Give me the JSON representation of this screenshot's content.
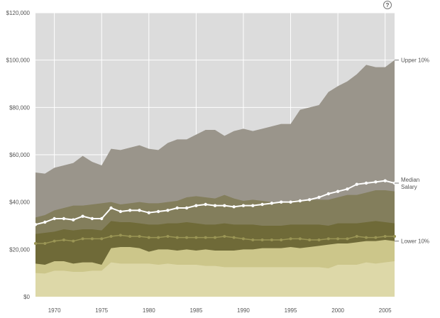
{
  "help_glyph": "?",
  "chart_data": {
    "type": "area",
    "x": [
      1968,
      1969,
      1970,
      1971,
      1972,
      1973,
      1974,
      1975,
      1976,
      1977,
      1978,
      1979,
      1980,
      1981,
      1982,
      1983,
      1984,
      1985,
      1986,
      1987,
      1988,
      1989,
      1990,
      1991,
      1992,
      1993,
      1994,
      1995,
      1996,
      1997,
      1998,
      1999,
      2000,
      2001,
      2002,
      2003,
      2004,
      2005,
      2006
    ],
    "xticks": [
      1970,
      1975,
      1980,
      1985,
      1990,
      1995,
      2000,
      2005
    ],
    "xtick_labels": [
      "1970",
      "1975",
      "1980",
      "1985",
      "1990",
      "1995",
      "2000",
      "2005"
    ],
    "xlim": [
      1968,
      2006
    ],
    "ylim": [
      0,
      120000
    ],
    "yticks": [
      0,
      20000,
      40000,
      60000,
      80000,
      100000,
      120000
    ],
    "ytick_labels": [
      "$0",
      "$20,000",
      "$40,000",
      "$60,000",
      "$80,000",
      "$100,000",
      "$120,000"
    ],
    "grid": true,
    "series": [
      {
        "name": "Upper 10%",
        "color": "#9a958b",
        "values": [
          52500,
          52000,
          54500,
          55500,
          56500,
          59500,
          57000,
          55500,
          62500,
          62000,
          63000,
          64000,
          62500,
          62000,
          65000,
          66500,
          66500,
          68500,
          70500,
          70500,
          68000,
          70000,
          71000,
          70000,
          71000,
          72000,
          73000,
          73000,
          79000,
          80000,
          81000,
          86500,
          89000,
          91000,
          94000,
          98000,
          97000,
          97000,
          100000
        ]
      },
      {
        "name": "",
        "color": "#837e5c",
        "values": [
          33500,
          34500,
          36500,
          37500,
          38500,
          38500,
          39000,
          39500,
          40000,
          39000,
          39500,
          40000,
          39500,
          39500,
          40000,
          40500,
          42000,
          42500,
          42000,
          41500,
          43000,
          41500,
          40500,
          41000,
          40500,
          40000,
          40000,
          40500,
          41000,
          41000,
          41000,
          41000,
          42000,
          43000,
          43000,
          44000,
          45000,
          45000,
          44500
        ]
      },
      {
        "name": "",
        "color": "#6f6a38",
        "values": [
          26500,
          27000,
          27500,
          28500,
          28000,
          28500,
          28500,
          28000,
          32000,
          31500,
          31500,
          31000,
          30500,
          30500,
          31000,
          31000,
          31500,
          31000,
          30500,
          30500,
          31000,
          30500,
          30500,
          30500,
          30000,
          30000,
          30000,
          30500,
          30500,
          30500,
          30500,
          30000,
          31000,
          31000,
          31000,
          31500,
          32000,
          31500,
          31000
        ]
      },
      {
        "name": "Lower 10%",
        "color": "#ccc68a",
        "values": [
          14000,
          13500,
          15000,
          15000,
          14000,
          14500,
          14500,
          13500,
          20500,
          21000,
          21000,
          20500,
          19000,
          20000,
          20000,
          19500,
          20000,
          19500,
          20000,
          19500,
          19500,
          19500,
          20000,
          20000,
          20500,
          20500,
          20500,
          21000,
          20500,
          21000,
          21500,
          22000,
          22500,
          22500,
          23000,
          23500,
          23500,
          24000,
          23500
        ]
      },
      {
        "name": "",
        "color": "#ddd8a8",
        "values": [
          10000,
          9800,
          11000,
          11000,
          10500,
          10500,
          11000,
          11000,
          14500,
          14000,
          14000,
          14000,
          14000,
          13500,
          14000,
          13500,
          13500,
          13500,
          13000,
          13000,
          12500,
          12500,
          12500,
          12500,
          12500,
          12500,
          12500,
          12500,
          12500,
          12500,
          12500,
          12000,
          13500,
          13500,
          13500,
          14500,
          14000,
          14500,
          15000
        ]
      },
      {
        "name": "Median Salary",
        "color": "#ffffff",
        "values": [
          30500,
          31500,
          33000,
          33000,
          32500,
          34000,
          33000,
          33000,
          37500,
          36000,
          36500,
          36500,
          35500,
          36000,
          36500,
          37500,
          37500,
          38500,
          39000,
          38500,
          38500,
          38000,
          38500,
          38500,
          39000,
          39500,
          40000,
          40000,
          40500,
          41000,
          42000,
          43500,
          44500,
          45500,
          47500,
          48000,
          48500,
          49000,
          48000
        ]
      },
      {
        "name": "",
        "color": "#9a9555",
        "values": [
          22500,
          22500,
          23500,
          24000,
          23500,
          24500,
          24500,
          24500,
          25500,
          26000,
          25500,
          25500,
          25000,
          25000,
          25500,
          25000,
          25000,
          25000,
          25000,
          25000,
          25500,
          25000,
          24500,
          24000,
          24000,
          24000,
          24000,
          24500,
          24500,
          24000,
          24000,
          24500,
          24500,
          24500,
          25500,
          25000,
          25000,
          25500,
          25500
        ]
      }
    ]
  }
}
